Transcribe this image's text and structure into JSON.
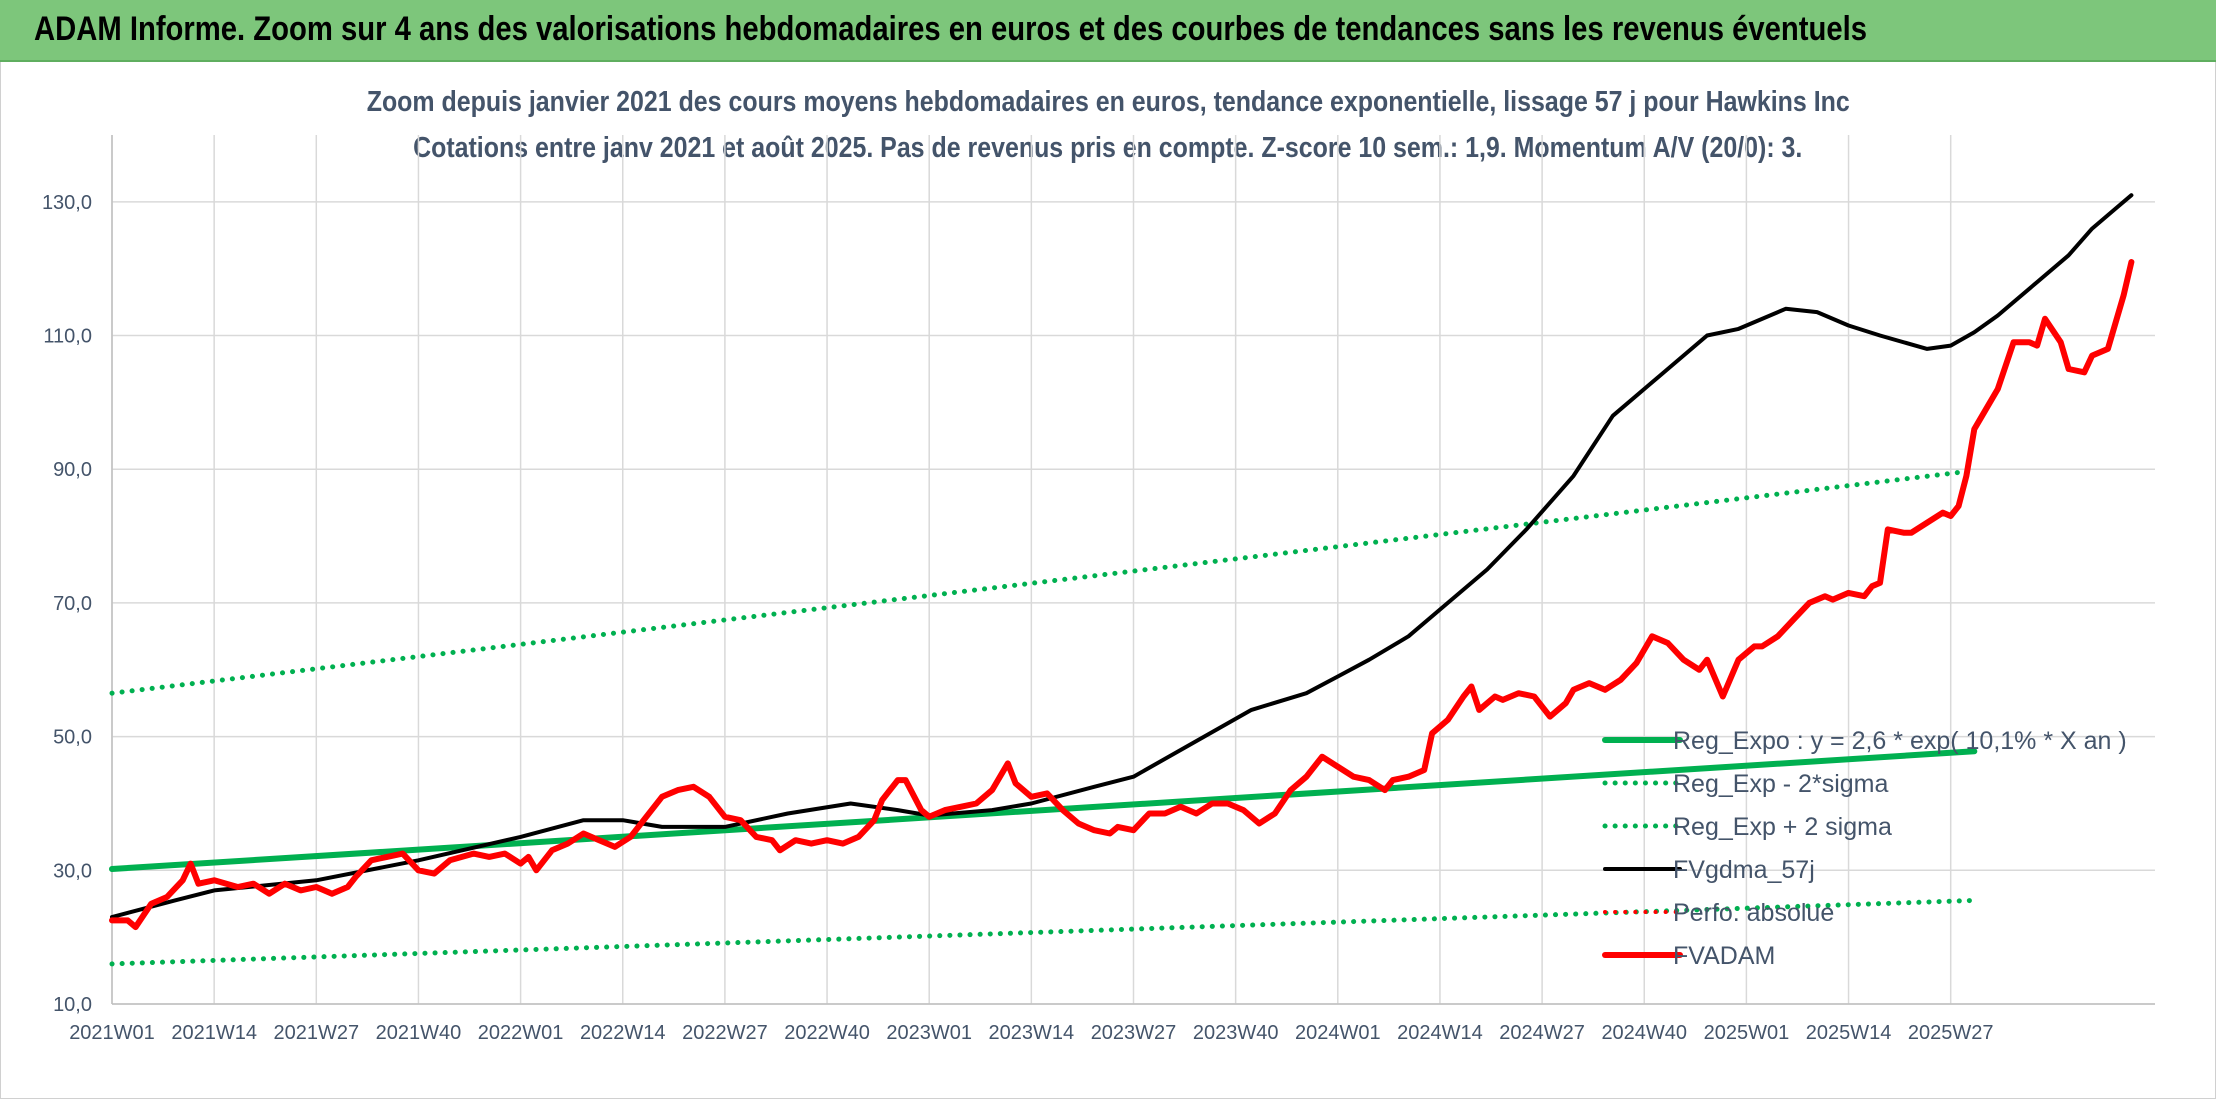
{
  "header": {
    "title": "ADAM Informe. Zoom sur 4 ans des valorisations hebdomadaires en euros et des courbes de tendances sans les revenus éventuels"
  },
  "chart_data": {
    "type": "line",
    "title": "Zoom depuis janvier 2021 des cours moyens hebdomadaires en euros, tendance exponentielle, lissage 57 j pour Hawkins Inc",
    "subtitle": "Cotations entre janv 2021 et août 2025. Pas de revenus pris en compte. Z-score 10 sem.: 1,9. Momentum A/V (20/0): 3.",
    "xlabel": "",
    "ylabel": "",
    "ylim": [
      10,
      140
    ],
    "y_ticks": [
      "10,0",
      "30,0",
      "50,0",
      "70,0",
      "90,0",
      "110,0",
      "130,0"
    ],
    "x_ticks": [
      "2021W01",
      "2021W14",
      "2021W27",
      "2021W40",
      "2022W01",
      "2022W14",
      "2022W27",
      "2022W40",
      "2023W01",
      "2023W14",
      "2023W27",
      "2023W40",
      "2024W01",
      "2024W14",
      "2024W27",
      "2024W40",
      "2025W01",
      "2025W14",
      "2025W27"
    ],
    "grid": true,
    "legend_position": "bottom-right",
    "x_unit": "weeks since 2021W01",
    "series": [
      {
        "name": "Reg_Expo : y = 2,6 * exp( 10,1% *  X  an )",
        "color": "#00b050",
        "style": "solid",
        "width": 6,
        "points": [
          [
            0,
            30.2
          ],
          [
            237,
            47.8
          ]
        ]
      },
      {
        "name": "Reg_Exp - 2*sigma",
        "color": "#00b050",
        "style": "dotted",
        "width": 5,
        "points": [
          [
            0,
            16.0
          ],
          [
            237,
            25.5
          ]
        ]
      },
      {
        "name": "Reg_Exp + 2 sigma",
        "color": "#00b050",
        "style": "dotted",
        "width": 5,
        "points": [
          [
            0,
            56.5
          ],
          [
            237,
            89.8
          ]
        ]
      },
      {
        "name": "FVgdma_57j",
        "color": "#000000",
        "style": "solid",
        "width": 4,
        "points": [
          [
            0,
            23.0
          ],
          [
            8,
            25.5
          ],
          [
            13,
            27.0
          ],
          [
            26,
            28.5
          ],
          [
            39,
            31.5
          ],
          [
            52,
            35.0
          ],
          [
            60,
            37.5
          ],
          [
            65,
            37.5
          ],
          [
            70,
            36.5
          ],
          [
            78,
            36.5
          ],
          [
            86,
            38.5
          ],
          [
            94,
            40.0
          ],
          [
            100,
            39.0
          ],
          [
            104,
            38.2
          ],
          [
            112,
            39.0
          ],
          [
            117,
            40.0
          ],
          [
            125,
            42.5
          ],
          [
            130,
            44.0
          ],
          [
            139,
            50.0
          ],
          [
            145,
            54.0
          ],
          [
            152,
            56.5
          ],
          [
            156,
            59.0
          ],
          [
            160,
            61.5
          ],
          [
            165,
            65.0
          ],
          [
            170,
            70.0
          ],
          [
            175,
            75.0
          ],
          [
            180,
            81.0
          ],
          [
            186,
            89.0
          ],
          [
            191,
            98.0
          ],
          [
            197,
            104.0
          ],
          [
            201,
            108.0
          ],
          [
            203,
            110.0
          ],
          [
            207,
            111.0
          ],
          [
            213,
            114.0
          ],
          [
            217,
            113.5
          ],
          [
            221,
            111.5
          ],
          [
            225,
            110.0
          ],
          [
            231,
            108.0
          ],
          [
            234,
            108.5
          ],
          [
            237,
            110.5
          ],
          [
            240,
            113.0
          ],
          [
            245,
            118.0
          ],
          [
            249,
            122.0
          ],
          [
            252,
            126.0
          ],
          [
            255,
            129.0
          ],
          [
            257,
            131.0
          ]
        ]
      },
      {
        "name": "Perfo. absolue",
        "color": "#ff0000",
        "style": "dotted",
        "width": 4,
        "points": []
      },
      {
        "name": "FVADAM",
        "color": "#ff0000",
        "style": "solid",
        "width": 6,
        "points": [
          [
            0,
            22.5
          ],
          [
            2,
            22.5
          ],
          [
            3,
            21.5
          ],
          [
            5,
            25.0
          ],
          [
            7,
            26.0
          ],
          [
            9,
            28.5
          ],
          [
            10,
            31.0
          ],
          [
            11,
            28.0
          ],
          [
            13,
            28.5
          ],
          [
            16,
            27.5
          ],
          [
            18,
            28.0
          ],
          [
            20,
            26.5
          ],
          [
            22,
            28.0
          ],
          [
            24,
            27.0
          ],
          [
            26,
            27.5
          ],
          [
            28,
            26.5
          ],
          [
            30,
            27.5
          ],
          [
            31,
            29.0
          ],
          [
            33,
            31.5
          ],
          [
            35,
            32.0
          ],
          [
            37,
            32.5
          ],
          [
            39,
            30.0
          ],
          [
            41,
            29.5
          ],
          [
            43,
            31.5
          ],
          [
            46,
            32.5
          ],
          [
            48,
            32.0
          ],
          [
            50,
            32.5
          ],
          [
            52,
            31.0
          ],
          [
            53,
            32.0
          ],
          [
            54,
            30.0
          ],
          [
            56,
            33.0
          ],
          [
            58,
            34.0
          ],
          [
            60,
            35.5
          ],
          [
            62,
            34.5
          ],
          [
            64,
            33.5
          ],
          [
            66,
            35.0
          ],
          [
            68,
            38.0
          ],
          [
            70,
            41.0
          ],
          [
            72,
            42.0
          ],
          [
            74,
            42.5
          ],
          [
            76,
            41.0
          ],
          [
            78,
            38.0
          ],
          [
            80,
            37.5
          ],
          [
            82,
            35.0
          ],
          [
            84,
            34.5
          ],
          [
            85,
            33.0
          ],
          [
            87,
            34.5
          ],
          [
            89,
            34.0
          ],
          [
            91,
            34.5
          ],
          [
            93,
            34.0
          ],
          [
            95,
            35.0
          ],
          [
            97,
            37.5
          ],
          [
            98,
            40.5
          ],
          [
            100,
            43.5
          ],
          [
            101,
            43.5
          ],
          [
            103,
            39.0
          ],
          [
            104,
            38.0
          ],
          [
            106,
            39.0
          ],
          [
            108,
            39.5
          ],
          [
            110,
            40.0
          ],
          [
            112,
            42.0
          ],
          [
            114,
            46.0
          ],
          [
            115,
            43.0
          ],
          [
            117,
            41.0
          ],
          [
            119,
            41.5
          ],
          [
            121,
            39.0
          ],
          [
            123,
            37.0
          ],
          [
            125,
            36.0
          ],
          [
            127,
            35.5
          ],
          [
            128,
            36.5
          ],
          [
            130,
            36.0
          ],
          [
            132,
            38.5
          ],
          [
            134,
            38.5
          ],
          [
            136,
            39.5
          ],
          [
            138,
            38.5
          ],
          [
            140,
            40.0
          ],
          [
            142,
            40.0
          ],
          [
            144,
            39.0
          ],
          [
            146,
            37.0
          ],
          [
            148,
            38.5
          ],
          [
            150,
            42.0
          ],
          [
            152,
            44.0
          ],
          [
            154,
            47.0
          ],
          [
            156,
            45.5
          ],
          [
            158,
            44.0
          ],
          [
            160,
            43.5
          ],
          [
            162,
            42.0
          ],
          [
            163,
            43.5
          ],
          [
            165,
            44.0
          ],
          [
            167,
            45.0
          ],
          [
            168,
            50.5
          ],
          [
            170,
            52.5
          ],
          [
            172,
            56.0
          ],
          [
            173,
            57.5
          ],
          [
            174,
            54.0
          ],
          [
            176,
            56.0
          ],
          [
            177,
            55.5
          ],
          [
            179,
            56.5
          ],
          [
            181,
            56.0
          ],
          [
            183,
            53.0
          ],
          [
            185,
            55.0
          ],
          [
            186,
            57.0
          ],
          [
            188,
            58.0
          ],
          [
            190,
            57.0
          ],
          [
            192,
            58.5
          ],
          [
            194,
            61.0
          ],
          [
            196,
            65.0
          ],
          [
            198,
            64.0
          ],
          [
            200,
            61.5
          ],
          [
            202,
            60.0
          ],
          [
            203,
            61.5
          ],
          [
            205,
            56.0
          ],
          [
            207,
            61.5
          ],
          [
            209,
            63.5
          ],
          [
            210,
            63.5
          ],
          [
            212,
            65.0
          ],
          [
            214,
            67.5
          ],
          [
            216,
            70.0
          ],
          [
            218,
            71.0
          ],
          [
            219,
            70.5
          ],
          [
            221,
            71.5
          ],
          [
            223,
            71.0
          ],
          [
            224,
            72.5
          ],
          [
            225,
            73.0
          ],
          [
            226,
            81.0
          ],
          [
            228,
            80.5
          ],
          [
            229,
            80.5
          ],
          [
            231,
            82.0
          ],
          [
            233,
            83.5
          ],
          [
            234,
            83.0
          ],
          [
            235,
            84.5
          ],
          [
            236,
            89.0
          ],
          [
            237,
            96.0
          ],
          [
            238,
            98.0
          ],
          [
            240,
            102.0
          ],
          [
            242,
            109.0
          ],
          [
            244,
            109.0
          ],
          [
            245,
            108.5
          ],
          [
            246,
            112.5
          ],
          [
            248,
            109.0
          ],
          [
            249,
            105.0
          ],
          [
            251,
            104.5
          ],
          [
            252,
            107.0
          ],
          [
            254,
            108.0
          ],
          [
            256,
            116.0
          ],
          [
            257,
            121.0
          ]
        ]
      }
    ]
  }
}
